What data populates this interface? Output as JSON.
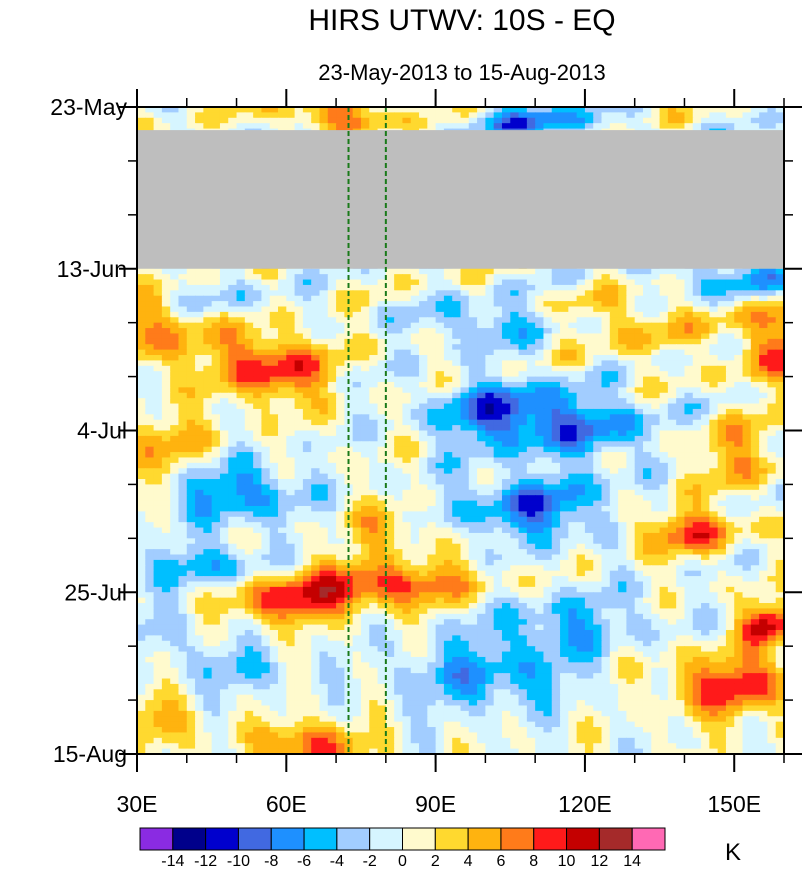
{
  "chart_data": {
    "type": "heatmap",
    "title": "HIRS UTWV: 10S - EQ",
    "subtitle": "23-May-2013 to 15-Aug-2013",
    "units": "K",
    "x_axis": {
      "range": [
        30,
        160
      ],
      "ticks": [
        {
          "value": 30,
          "label": "30E"
        },
        {
          "value": 60,
          "label": "60E"
        },
        {
          "value": 90,
          "label": "90E"
        },
        {
          "value": 120,
          "label": "120E"
        },
        {
          "value": 150,
          "label": "150E"
        }
      ],
      "minor_tick_step": 10
    },
    "y_axis": {
      "range_days": [
        0,
        84
      ],
      "direction": "top-to-bottom",
      "ticks": [
        {
          "day": 0,
          "label": "23-May"
        },
        {
          "day": 21,
          "label": "13-Jun"
        },
        {
          "day": 42,
          "label": "4-Jul"
        },
        {
          "day": 63,
          "label": "25-Jul"
        },
        {
          "day": 84,
          "label": "15-Aug"
        }
      ],
      "minor_tick_step_days": 7
    },
    "reference_lines": {
      "style": "dashed",
      "color": "#1a7a1a",
      "longitudes": [
        72.5,
        80
      ]
    },
    "missing_data": {
      "color": "#bebebe",
      "day_range": [
        3,
        21
      ]
    },
    "colorbar": {
      "orientation": "horizontal",
      "labels": [
        "-14",
        "-12",
        "-10",
        "-8",
        "-6",
        "-4",
        "-2",
        "0",
        "2",
        "4",
        "6",
        "8",
        "10",
        "12",
        "14"
      ],
      "colors": [
        "#8a2be2",
        "#00008b",
        "#0000cd",
        "#4169e1",
        "#1e90ff",
        "#00bfff",
        "#a2cdff",
        "#d6f5ff",
        "#fffacd",
        "#ffd92f",
        "#ffb30f",
        "#ff7b1a",
        "#ff1a1a",
        "#c40000",
        "#a52a2a",
        "#ff69b4"
      ]
    },
    "anomaly_features": [
      {
        "lon": 58,
        "day": 34,
        "value": 10,
        "sigma_lon": 7,
        "sigma_day": 3
      },
      {
        "lon": 36,
        "day": 29,
        "value": 6,
        "sigma_lon": 9,
        "sigma_day": 4
      },
      {
        "lon": 35,
        "day": 44,
        "value": 5,
        "sigma_lon": 8,
        "sigma_day": 3
      },
      {
        "lon": 50,
        "day": 50,
        "value": -7,
        "sigma_lon": 9,
        "sigma_day": 3
      },
      {
        "lon": 105,
        "day": 40,
        "value": -10,
        "sigma_lon": 10,
        "sigma_day": 3
      },
      {
        "lon": 125,
        "day": 42,
        "value": -5,
        "sigma_lon": 9,
        "sigma_day": 3
      },
      {
        "lon": 110,
        "day": 52,
        "value": -8,
        "sigma_lon": 11,
        "sigma_day": 3
      },
      {
        "lon": 140,
        "day": 55,
        "value": 8,
        "sigma_lon": 8,
        "sigma_day": 2
      },
      {
        "lon": 80,
        "day": 62,
        "value": 9,
        "sigma_lon": 14,
        "sigma_day": 2
      },
      {
        "lon": 60,
        "day": 64,
        "value": 9,
        "sigma_lon": 8,
        "sigma_day": 2
      },
      {
        "lon": 115,
        "day": 67,
        "value": -5,
        "sigma_lon": 12,
        "sigma_day": 3
      },
      {
        "lon": 150,
        "day": 75,
        "value": 9,
        "sigma_lon": 9,
        "sigma_day": 3
      },
      {
        "lon": 100,
        "day": 74,
        "value": -6,
        "sigma_lon": 12,
        "sigma_day": 3
      },
      {
        "lon": 65,
        "day": 83,
        "value": 9,
        "sigma_lon": 7,
        "sigma_day": 2
      },
      {
        "lon": 157,
        "day": 67,
        "value": 10,
        "sigma_lon": 4,
        "sigma_day": 2
      },
      {
        "lon": 70,
        "day": 1,
        "value": 7,
        "sigma_lon": 9,
        "sigma_day": 1.5
      },
      {
        "lon": 110,
        "day": 2,
        "value": -7,
        "sigma_lon": 10,
        "sigma_day": 1.5
      },
      {
        "lon": 150,
        "day": 22,
        "value": -6,
        "sigma_lon": 10,
        "sigma_day": 2
      },
      {
        "lon": 45,
        "day": 25,
        "value": -4,
        "sigma_lon": 8,
        "sigma_day": 2
      },
      {
        "lon": 160,
        "day": 30,
        "value": 7,
        "sigma_lon": 8,
        "sigma_day": 4
      },
      {
        "lon": 150,
        "day": 45,
        "value": 5,
        "sigma_lon": 8,
        "sigma_day": 3
      },
      {
        "lon": 45,
        "day": 60,
        "value": -6,
        "sigma_lon": 9,
        "sigma_day": 2
      },
      {
        "lon": 80,
        "day": 55,
        "value": 5,
        "sigma_lon": 6,
        "sigma_day": 2
      },
      {
        "lon": 130,
        "day": 28,
        "value": 4,
        "sigma_lon": 8,
        "sigma_day": 3
      },
      {
        "lon": 100,
        "day": 28,
        "value": -5,
        "sigma_lon": 9,
        "sigma_day": 2
      },
      {
        "lon": 35,
        "day": 68,
        "value": -3,
        "sigma_lon": 6,
        "sigma_day": 2
      },
      {
        "lon": 50,
        "day": 73,
        "value": -4,
        "sigma_lon": 8,
        "sigma_day": 2
      },
      {
        "lon": 35,
        "day": 80,
        "value": 5,
        "sigma_lon": 6,
        "sigma_day": 2
      }
    ]
  }
}
